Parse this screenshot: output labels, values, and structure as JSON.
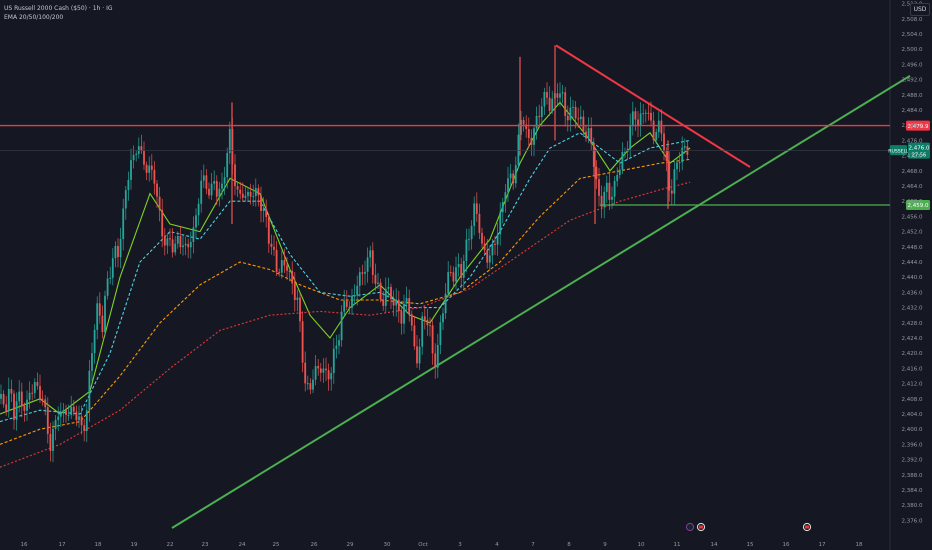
{
  "header": {
    "title": "US Russell 2000 Cash ($50) · 1h · IG",
    "indicator": "EMA 20/50/100/200",
    "currency_button": "USD"
  },
  "colors": {
    "background": "#151823",
    "up": "#26a69a",
    "down": "#ef5350",
    "resistance": "#f23645",
    "trendline": "#4caf50",
    "ema20": "#7ed321",
    "ema50": "#4dd0e1",
    "ema100": "#ff9800",
    "ema200": "#e53935"
  },
  "chart_data": {
    "type": "candlestick",
    "symbol": "RUSSELL",
    "timeframe": "1h",
    "ylim": [
      2374,
      2516
    ],
    "y_ticks": [
      "2,376.0",
      "2,380.0",
      "2,384.0",
      "2,388.0",
      "2,392.0",
      "2,396.0",
      "2,400.0",
      "2,404.0",
      "2,408.0",
      "2,412.0",
      "2,416.0",
      "2,420.0",
      "2,424.0",
      "2,428.0",
      "2,432.0",
      "2,436.0",
      "2,440.0",
      "2,444.0",
      "2,448.0",
      "2,452.0",
      "2,456.0",
      "2,460.0",
      "2,464.0",
      "2,468.0",
      "2,472.0",
      "2,476.0",
      "2,480.0",
      "2,484.0",
      "2,488.0",
      "2,492.0",
      "2,496.0",
      "2,500.0",
      "2,504.0",
      "2,508.0",
      "2,512.0"
    ],
    "x_ticks": [
      "16",
      "17",
      "18",
      "19",
      "22",
      "23",
      "24",
      "25",
      "26",
      "29",
      "30",
      "Oct",
      "3",
      "4",
      "7",
      "8",
      "9",
      "10",
      "11",
      "14",
      "15",
      "16",
      "17",
      "18"
    ],
    "close_path": [
      [
        0,
        2408
      ],
      [
        6,
        2406
      ],
      [
        10,
        2411
      ],
      [
        14,
        2404
      ],
      [
        18,
        2409
      ],
      [
        22,
        2407
      ],
      [
        26,
        2405
      ],
      [
        30,
        2410
      ],
      [
        34,
        2412
      ],
      [
        38,
        2410
      ],
      [
        42,
        2409
      ],
      [
        46,
        2403
      ],
      [
        50,
        2395
      ],
      [
        54,
        2400
      ],
      [
        58,
        2405
      ],
      [
        62,
        2403
      ],
      [
        66,
        2405
      ],
      [
        70,
        2404
      ],
      [
        74,
        2405
      ],
      [
        78,
        2403
      ],
      [
        82,
        2400
      ],
      [
        86,
        2402
      ],
      [
        90,
        2416
      ],
      [
        94,
        2426
      ],
      [
        98,
        2433
      ],
      [
        102,
        2426
      ],
      [
        106,
        2437
      ],
      [
        110,
        2441
      ],
      [
        114,
        2447
      ],
      [
        118,
        2446
      ],
      [
        122,
        2454
      ],
      [
        126,
        2463
      ],
      [
        130,
        2470
      ],
      [
        134,
        2471
      ],
      [
        138,
        2476
      ],
      [
        142,
        2471
      ],
      [
        146,
        2469
      ],
      [
        150,
        2468
      ],
      [
        154,
        2467
      ],
      [
        158,
        2459
      ],
      [
        162,
        2452
      ],
      [
        166,
        2448
      ],
      [
        170,
        2450
      ],
      [
        174,
        2447
      ],
      [
        178,
        2450
      ],
      [
        182,
        2449
      ],
      [
        186,
        2447
      ],
      [
        190,
        2450
      ],
      [
        194,
        2452
      ],
      [
        198,
        2460
      ],
      [
        202,
        2466
      ],
      [
        206,
        2465
      ],
      [
        210,
        2461
      ],
      [
        214,
        2466
      ],
      [
        218,
        2461
      ],
      [
        222,
        2464
      ],
      [
        226,
        2470
      ],
      [
        230,
        2478
      ],
      [
        234,
        2466
      ],
      [
        238,
        2461
      ],
      [
        242,
        2463
      ],
      [
        246,
        2460
      ],
      [
        250,
        2463
      ],
      [
        254,
        2461
      ],
      [
        258,
        2463
      ],
      [
        262,
        2457
      ],
      [
        266,
        2456
      ],
      [
        270,
        2448
      ],
      [
        274,
        2446
      ],
      [
        278,
        2441
      ],
      [
        282,
        2443
      ],
      [
        286,
        2444
      ],
      [
        290,
        2440
      ],
      [
        294,
        2436
      ],
      [
        298,
        2434
      ],
      [
        302,
        2420
      ],
      [
        306,
        2411
      ],
      [
        310,
        2410
      ],
      [
        314,
        2416
      ],
      [
        318,
        2415
      ],
      [
        322,
        2417
      ],
      [
        326,
        2414
      ],
      [
        330,
        2414
      ],
      [
        334,
        2420
      ],
      [
        338,
        2423
      ],
      [
        342,
        2431
      ],
      [
        346,
        2434
      ],
      [
        350,
        2432
      ],
      [
        354,
        2435
      ],
      [
        358,
        2440
      ],
      [
        362,
        2440
      ],
      [
        366,
        2444
      ],
      [
        370,
        2446
      ],
      [
        374,
        2440
      ],
      [
        378,
        2437
      ],
      [
        382,
        2433
      ],
      [
        386,
        2436
      ],
      [
        390,
        2437
      ],
      [
        394,
        2432
      ],
      [
        398,
        2433
      ],
      [
        402,
        2428
      ],
      [
        406,
        2435
      ],
      [
        410,
        2431
      ],
      [
        414,
        2421
      ],
      [
        418,
        2418
      ],
      [
        422,
        2428
      ],
      [
        426,
        2430
      ],
      [
        430,
        2426
      ],
      [
        434,
        2416
      ],
      [
        438,
        2422
      ],
      [
        442,
        2430
      ],
      [
        446,
        2437
      ],
      [
        450,
        2442
      ],
      [
        454,
        2440
      ],
      [
        458,
        2443
      ],
      [
        462,
        2441
      ],
      [
        466,
        2448
      ],
      [
        470,
        2452
      ],
      [
        474,
        2458
      ],
      [
        478,
        2456
      ],
      [
        482,
        2448
      ],
      [
        486,
        2445
      ],
      [
        490,
        2446
      ],
      [
        494,
        2448
      ],
      [
        498,
        2453
      ],
      [
        502,
        2458
      ],
      [
        506,
        2465
      ],
      [
        510,
        2466
      ],
      [
        514,
        2466
      ],
      [
        518,
        2475
      ],
      [
        522,
        2484
      ],
      [
        526,
        2478
      ],
      [
        530,
        2475
      ],
      [
        534,
        2479
      ],
      [
        538,
        2482
      ],
      [
        542,
        2486
      ],
      [
        546,
        2488
      ],
      [
        550,
        2485
      ],
      [
        554,
        2487
      ],
      [
        558,
        2489
      ],
      [
        562,
        2488
      ],
      [
        566,
        2482
      ],
      [
        570,
        2483
      ],
      [
        574,
        2485
      ],
      [
        578,
        2481
      ],
      [
        582,
        2481
      ],
      [
        586,
        2477
      ],
      [
        590,
        2478
      ],
      [
        594,
        2470
      ],
      [
        598,
        2461
      ],
      [
        602,
        2460
      ],
      [
        606,
        2464
      ],
      [
        610,
        2461
      ],
      [
        614,
        2463
      ],
      [
        618,
        2468
      ],
      [
        622,
        2472
      ],
      [
        626,
        2472
      ],
      [
        630,
        2480
      ],
      [
        634,
        2483
      ],
      [
        638,
        2481
      ],
      [
        642,
        2482
      ],
      [
        646,
        2485
      ],
      [
        650,
        2481
      ],
      [
        654,
        2477
      ],
      [
        658,
        2480
      ],
      [
        662,
        2478
      ],
      [
        666,
        2471
      ],
      [
        670,
        2460
      ],
      [
        674,
        2468
      ],
      [
        678,
        2469
      ],
      [
        682,
        2475
      ],
      [
        686,
        2472
      ],
      [
        690,
        2473
      ]
    ],
    "series": [
      {
        "name": "EMA 20",
        "points": [
          [
            0,
            2404
          ],
          [
            40,
            2408
          ],
          [
            60,
            2404
          ],
          [
            90,
            2410
          ],
          [
            120,
            2440
          ],
          [
            150,
            2462
          ],
          [
            170,
            2454
          ],
          [
            200,
            2452
          ],
          [
            230,
            2466
          ],
          [
            260,
            2462
          ],
          [
            290,
            2442
          ],
          [
            310,
            2430
          ],
          [
            330,
            2424
          ],
          [
            350,
            2432
          ],
          [
            380,
            2438
          ],
          [
            410,
            2430
          ],
          [
            430,
            2428
          ],
          [
            460,
            2440
          ],
          [
            490,
            2450
          ],
          [
            520,
            2470
          ],
          [
            540,
            2480
          ],
          [
            560,
            2486
          ],
          [
            590,
            2476
          ],
          [
            610,
            2468
          ],
          [
            630,
            2474
          ],
          [
            650,
            2478
          ],
          [
            670,
            2470
          ],
          [
            690,
            2474
          ]
        ]
      },
      {
        "name": "EMA 50",
        "points": [
          [
            0,
            2402
          ],
          [
            40,
            2405
          ],
          [
            80,
            2404
          ],
          [
            110,
            2420
          ],
          [
            140,
            2444
          ],
          [
            170,
            2452
          ],
          [
            200,
            2450
          ],
          [
            230,
            2460
          ],
          [
            260,
            2460
          ],
          [
            290,
            2446
          ],
          [
            320,
            2436
          ],
          [
            350,
            2435
          ],
          [
            380,
            2436
          ],
          [
            410,
            2432
          ],
          [
            440,
            2432
          ],
          [
            470,
            2440
          ],
          [
            500,
            2452
          ],
          [
            530,
            2466
          ],
          [
            550,
            2474
          ],
          [
            580,
            2478
          ],
          [
            600,
            2474
          ],
          [
            620,
            2470
          ],
          [
            650,
            2474
          ],
          [
            690,
            2476
          ]
        ]
      },
      {
        "name": "EMA 100",
        "points": [
          [
            0,
            2396
          ],
          [
            40,
            2400
          ],
          [
            80,
            2402
          ],
          [
            120,
            2414
          ],
          [
            160,
            2428
          ],
          [
            200,
            2438
          ],
          [
            240,
            2444
          ],
          [
            270,
            2442
          ],
          [
            300,
            2438
          ],
          [
            340,
            2434
          ],
          [
            380,
            2434
          ],
          [
            420,
            2433
          ],
          [
            460,
            2436
          ],
          [
            500,
            2444
          ],
          [
            540,
            2456
          ],
          [
            580,
            2466
          ],
          [
            620,
            2468
          ],
          [
            660,
            2470
          ],
          [
            690,
            2471
          ]
        ]
      },
      {
        "name": "EMA 200",
        "points": [
          [
            0,
            2390
          ],
          [
            60,
            2396
          ],
          [
            120,
            2405
          ],
          [
            170,
            2416
          ],
          [
            220,
            2426
          ],
          [
            270,
            2430
          ],
          [
            320,
            2431
          ],
          [
            370,
            2430
          ],
          [
            420,
            2432
          ],
          [
            470,
            2437
          ],
          [
            520,
            2446
          ],
          [
            570,
            2455
          ],
          [
            620,
            2460
          ],
          [
            660,
            2463
          ],
          [
            690,
            2465
          ]
        ]
      }
    ],
    "horizontal_levels": [
      {
        "price": 2479.9,
        "label": "2,479.9"
      },
      {
        "price": 2459.0,
        "label": "2,459.0"
      }
    ],
    "current_price": {
      "symbol": "RUSSELL",
      "price": "2,476.0",
      "countdown": "27:56"
    },
    "annotations": [
      "resistance trendline from peak near 2,501 down to about 2,469",
      "rising support trendline from 2,374 to 2,492"
    ]
  }
}
